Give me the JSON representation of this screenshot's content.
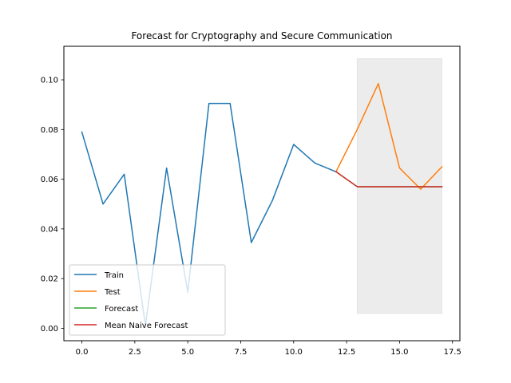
{
  "chart_data": {
    "type": "line",
    "title": "Forecast for Cryptography and Secure Communication",
    "xlabel": "",
    "ylabel": "",
    "xlim": [
      -0.85,
      17.85
    ],
    "ylim": [
      -0.005,
      0.1135
    ],
    "xticks": [
      0.0,
      2.5,
      5.0,
      7.5,
      10.0,
      12.5,
      15.0,
      17.5
    ],
    "xtick_labels": [
      "0.0",
      "2.5",
      "5.0",
      "7.5",
      "10.0",
      "12.5",
      "15.0",
      "17.5"
    ],
    "yticks": [
      0.0,
      0.02,
      0.04,
      0.06,
      0.08,
      0.1
    ],
    "ytick_labels": [
      "0.00",
      "0.02",
      "0.04",
      "0.06",
      "0.08",
      "0.10"
    ],
    "grid": false,
    "legend_position": "lower-left",
    "shaded_region": {
      "x": [
        13,
        17
      ],
      "y": [
        0.006,
        0.1085
      ],
      "color": "#d9d9d9"
    },
    "series": [
      {
        "name": "Train",
        "color": "#1f77b4",
        "x": [
          0,
          1,
          2,
          3,
          4,
          5,
          6,
          7,
          8,
          9,
          10,
          11,
          12
        ],
        "y": [
          0.079,
          0.05,
          0.062,
          0.001,
          0.0645,
          0.0145,
          0.0905,
          0.0905,
          0.0345,
          0.0515,
          0.074,
          0.0665,
          0.063
        ]
      },
      {
        "name": "Test",
        "color": "#ff7f0e",
        "x": [
          12,
          13,
          14,
          15,
          16,
          17
        ],
        "y": [
          0.063,
          0.08,
          0.0985,
          0.0645,
          0.056,
          0.065
        ]
      },
      {
        "name": "Forecast",
        "color": "#2ca02c",
        "x": [
          12,
          13,
          14,
          15,
          16,
          17
        ],
        "y": [
          0.063,
          0.057,
          0.057,
          0.057,
          0.057,
          0.057
        ]
      },
      {
        "name": "Mean Naive Forecast",
        "color": "#d62728",
        "x": [
          12,
          13,
          14,
          15,
          16,
          17
        ],
        "y": [
          0.063,
          0.057,
          0.057,
          0.057,
          0.057,
          0.057
        ]
      }
    ]
  }
}
